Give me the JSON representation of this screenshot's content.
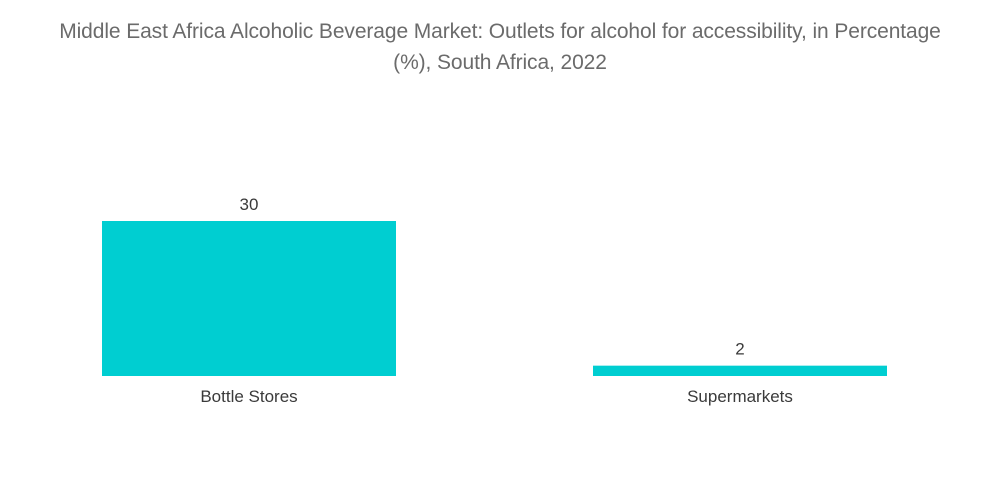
{
  "chart_data": {
    "type": "bar",
    "title": "Middle East Africa Alcoholic Beverage Market: Outlets for alcohol for accessibility, in Percentage (%), South Africa, 2022",
    "categories": [
      "Bottle Stores",
      "Supermarkets"
    ],
    "values": [
      30,
      2
    ],
    "data_labels": [
      "30",
      "2"
    ],
    "xlabel": "",
    "ylabel": "",
    "ylim": [
      0,
      30
    ],
    "grid": false,
    "legend": "none",
    "bar_color": "#00CED1"
  }
}
